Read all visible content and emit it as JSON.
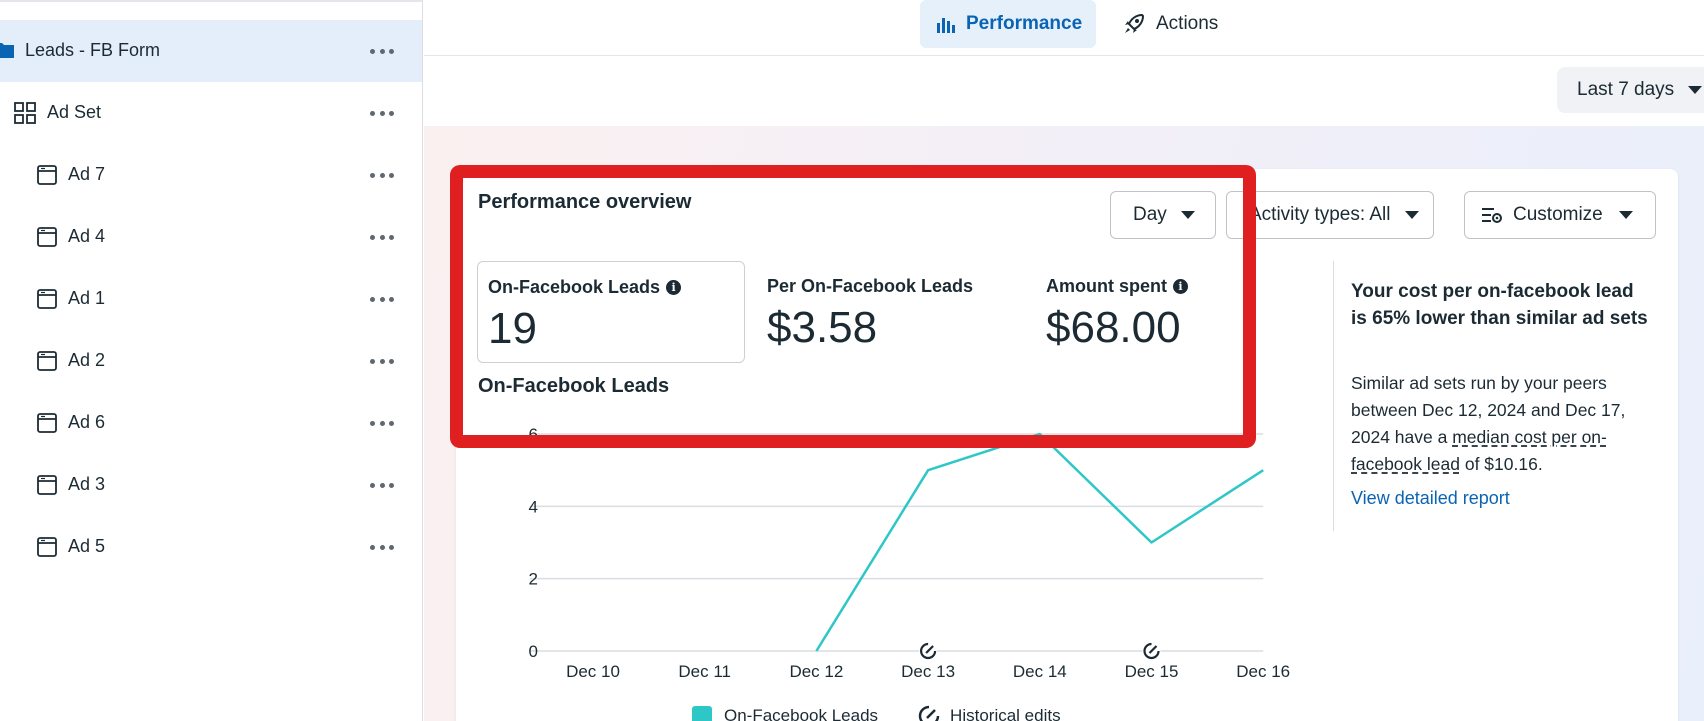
{
  "sidebar": {
    "items": [
      {
        "label": "Leads - FB Form",
        "icon": "folder-icon",
        "selected": true
      },
      {
        "label": "Ad Set",
        "icon": "grid-icon",
        "selected": false
      },
      {
        "label": "Ad 7",
        "icon": "ad-icon",
        "selected": false
      },
      {
        "label": "Ad 4",
        "icon": "ad-icon",
        "selected": false
      },
      {
        "label": "Ad 1",
        "icon": "ad-icon",
        "selected": false
      },
      {
        "label": "Ad 2",
        "icon": "ad-icon",
        "selected": false
      },
      {
        "label": "Ad 6",
        "icon": "ad-icon",
        "selected": false
      },
      {
        "label": "Ad 3",
        "icon": "ad-icon",
        "selected": false
      },
      {
        "label": "Ad 5",
        "icon": "ad-icon",
        "selected": false
      }
    ]
  },
  "tabs": {
    "performance": "Performance",
    "actions": "Actions"
  },
  "date_range": "Last 7 days",
  "overview": {
    "title": "Performance overview",
    "controls": {
      "granularity": "Day",
      "activity": "Activity types: All",
      "customize": "Customize"
    },
    "metrics": [
      {
        "label": "On-Facebook Leads",
        "value": "19"
      },
      {
        "label": "Per On-Facebook Leads",
        "value": "$3.58"
      },
      {
        "label": "Amount spent",
        "value": "$68.00"
      }
    ],
    "chart_title": "On-Facebook Leads"
  },
  "insight": {
    "title": "Your cost per on-facebook lead is 65% lower than similar ad sets",
    "body_pre": "Similar ad sets run by your peers between Dec 12, 2024 and Dec 17, 2024 have a ",
    "body_link": "median cost per on-facebook lead",
    "body_post": " of $10.16.",
    "report_link": "View detailed report"
  },
  "legend": {
    "series": "On-Facebook Leads",
    "edits": "Historical edits"
  },
  "colors": {
    "series": "#2ec7c7",
    "accent": "#0a64b4",
    "highlight": "#e02020"
  },
  "chart_data": {
    "type": "line",
    "x": [
      "Dec 10",
      "Dec 11",
      "Dec 12",
      "Dec 13",
      "Dec 14",
      "Dec 15",
      "Dec 16"
    ],
    "series": [
      {
        "name": "On-Facebook Leads",
        "values": [
          0,
          0,
          0,
          5,
          6,
          3,
          5
        ]
      }
    ],
    "y_ticks": [
      0,
      2,
      4,
      6
    ],
    "ylim": [
      0,
      6
    ],
    "historical_edits": [
      "Dec 13",
      "Dec 15"
    ],
    "grid": true
  }
}
